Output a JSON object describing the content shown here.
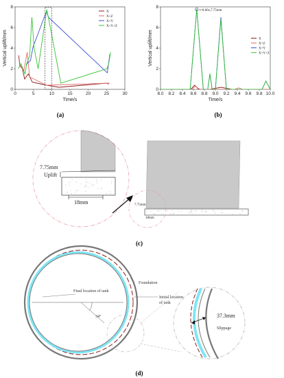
{
  "chart_data": [
    {
      "type": "line",
      "panel": "(a)",
      "xlabel": "Time/s",
      "ylabel": "Vertical uplift/mm",
      "xlim": [
        0,
        30
      ],
      "ylim": [
        0,
        8
      ],
      "xticks": [
        0,
        5,
        10,
        15,
        20,
        25,
        30
      ],
      "yticks": [
        0,
        2,
        4,
        6,
        8
      ],
      "legend": [
        "X",
        "X+Z",
        "X+Y",
        "X+Y+Z"
      ],
      "legend_position": "top-right",
      "series": [
        {
          "name": "X",
          "color": "#8b1a1a",
          "x": [
            1.0,
            1.3,
            2.0,
            2.6,
            3.6,
            4.7,
            8.6,
            12.0,
            25.0,
            25.6
          ],
          "y": [
            3.3,
            2.3,
            2.0,
            1.0,
            1.5,
            0.7,
            0.4,
            0.2,
            0.6,
            0.5
          ]
        },
        {
          "name": "X+Z",
          "color": "#e26a6a",
          "x": [
            1.2,
            2.4,
            3.3,
            4.0,
            8.6,
            25.8
          ],
          "y": [
            2.5,
            1.8,
            3.6,
            1.2,
            0.4,
            0.6
          ]
        },
        {
          "name": "X+Y",
          "color": "#3b4fd8",
          "x": [
            3.0,
            4.2,
            4.9,
            8.6,
            9.1,
            25.2,
            25.9
          ],
          "y": [
            2.4,
            2.8,
            4.1,
            7.6,
            7.0,
            1.6,
            3.4
          ]
        },
        {
          "name": "X+Y+Z",
          "color": "#34c234",
          "x": [
            0.9,
            1.6,
            2.7,
            3.2,
            4.0,
            4.6,
            5.2,
            6.3,
            8.65,
            9.1,
            12.5,
            25.1,
            25.6,
            26.1
          ],
          "y": [
            2.0,
            2.5,
            1.5,
            2.5,
            3.3,
            7.0,
            4.0,
            2.0,
            7.75,
            7.0,
            0.6,
            2.0,
            2.5,
            3.6
          ]
        }
      ]
    },
    {
      "type": "line",
      "panel": "(b)",
      "xlabel": "Time/s",
      "ylabel": "Vertical uplift/mm",
      "xlim": [
        8.0,
        10.0
      ],
      "ylim": [
        0,
        8
      ],
      "xticks": [
        8.0,
        8.2,
        8.4,
        8.6,
        8.8,
        9.0,
        9.2,
        9.4,
        9.6,
        9.8,
        10.0
      ],
      "yticks": [
        0,
        2,
        4,
        6,
        8
      ],
      "legend": [
        "X",
        "X+Z",
        "X+Y",
        "X+Y+Z"
      ],
      "legend_position": "right",
      "annotation": "t=8.66s,7.75mm",
      "series": [
        {
          "name": "X",
          "color": "#8b1a1a",
          "x": [
            8.0,
            8.55,
            8.62,
            8.7,
            8.9,
            9.1,
            9.3,
            10.0
          ],
          "y": [
            0,
            0,
            0.4,
            0,
            0,
            0.2,
            0,
            0
          ]
        },
        {
          "name": "X+Z",
          "color": "#e26a6a",
          "x": [
            8.0,
            8.57,
            8.63,
            8.72,
            9.1,
            9.35,
            9.42,
            9.5,
            10.0
          ],
          "y": [
            0,
            0,
            0.3,
            0,
            0,
            0,
            0.15,
            0,
            0
          ]
        },
        {
          "name": "X+Y",
          "color": "#3b4fd8",
          "x": [
            8.0,
            8.54,
            8.66,
            8.78,
            8.86,
            8.9,
            8.94,
            9.0,
            9.1,
            9.2,
            9.85,
            9.92,
            10.0
          ],
          "y": [
            0,
            0,
            7.8,
            0,
            0,
            1.5,
            0,
            0,
            7.0,
            0,
            0,
            0.8,
            0
          ]
        },
        {
          "name": "X+Y+Z",
          "color": "#34c234",
          "x": [
            8.0,
            8.54,
            8.66,
            8.78,
            8.86,
            8.9,
            8.94,
            9.0,
            9.1,
            9.2,
            9.85,
            9.92,
            10.0
          ],
          "y": [
            0,
            0,
            7.75,
            0,
            0,
            1.5,
            0,
            0,
            6.8,
            0,
            0,
            0.8,
            0
          ]
        }
      ]
    }
  ],
  "figure_c": {
    "panel": "(c)",
    "uplift_value": "7.75mm",
    "uplift_label": "Uplift",
    "width_value": "18mm",
    "small_uplift_value": "7.75mm",
    "small_width_value": "18mm"
  },
  "figure_d": {
    "panel": "(d)",
    "foundation_label": "Foundation",
    "final_location_label": "Final location of tank",
    "initial_location_label": [
      "Initial location",
      "of tank"
    ],
    "angle_label": "34°",
    "slippage_value": "37.3mm",
    "slippage_label": "Slippage"
  },
  "colors": {
    "X": "#8b1a1a",
    "X+Z": "#e26a6a",
    "X+Y": "#3b4fd8",
    "X+Y+Z": "#34c234",
    "tank_gray": "#c9c9c9",
    "cyan": "#7ee6f5"
  }
}
